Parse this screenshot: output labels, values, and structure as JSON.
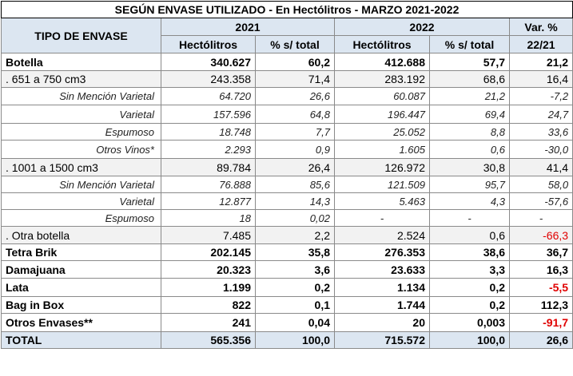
{
  "title": "SEGÚN ENVASE UTILIZADO - En Hectólitros - MARZO 2021-2022",
  "headers": {
    "tipo": "TIPO DE ENVASE",
    "year1": "2021",
    "year2": "2022",
    "var_top": "Var. %",
    "var_bottom": "22/21",
    "hl": "Hectólitros",
    "pct": "% s/ total"
  },
  "rows": [
    {
      "label": "Botella",
      "h21": "340.627",
      "p21": "60,2",
      "h22": "412.688",
      "p22": "57,7",
      "var": "21,2",
      "style": "bold",
      "neg": false
    },
    {
      "label": ". 651 a 750 cm3",
      "h21": "243.358",
      "p21": "71,4",
      "h22": "283.192",
      "p22": "68,6",
      "var": "16,4",
      "style": "shade",
      "neg": false
    },
    {
      "label": "Sin Mención Varietal",
      "h21": "64.720",
      "p21": "26,6",
      "h22": "60.087",
      "p22": "21,2",
      "var": "-7,2",
      "style": "sub",
      "neg": true
    },
    {
      "label": "Varietal",
      "h21": "157.596",
      "p21": "64,8",
      "h22": "196.447",
      "p22": "69,4",
      "var": "24,7",
      "style": "sub",
      "neg": false
    },
    {
      "label": "Espumoso",
      "h21": "18.748",
      "p21": "7,7",
      "h22": "25.052",
      "p22": "8,8",
      "var": "33,6",
      "style": "sub",
      "neg": false
    },
    {
      "label": "Otros Vinos*",
      "h21": "2.293",
      "p21": "0,9",
      "h22": "1.605",
      "p22": "0,6",
      "var": "-30,0",
      "style": "sub",
      "neg": true
    },
    {
      "label": ". 1001 a 1500 cm3",
      "h21": "89.784",
      "p21": "26,4",
      "h22": "126.972",
      "p22": "30,8",
      "var": "41,4",
      "style": "shade",
      "neg": false
    },
    {
      "label": "Sin Mención Varietal",
      "h21": "76.888",
      "p21": "85,6",
      "h22": "121.509",
      "p22": "95,7",
      "var": "58,0",
      "style": "sub",
      "neg": false
    },
    {
      "label": "Varietal",
      "h21": "12.877",
      "p21": "14,3",
      "h22": "5.463",
      "p22": "4,3",
      "var": "-57,6",
      "style": "sub",
      "neg": true
    },
    {
      "label": "Espumoso",
      "h21": "18",
      "p21": "0,02",
      "h22": "-",
      "p22": "-",
      "var": "-",
      "style": "sub",
      "neg": false
    },
    {
      "label": ". Otra botella",
      "h21": "7.485",
      "p21": "2,2",
      "h22": "2.524",
      "p22": "0,6",
      "var": "-66,3",
      "style": "shade",
      "neg": true
    },
    {
      "label": "Tetra Brik",
      "h21": "202.145",
      "p21": "35,8",
      "h22": "276.353",
      "p22": "38,6",
      "var": "36,7",
      "style": "bold",
      "neg": false
    },
    {
      "label": "Damajuana",
      "h21": "20.323",
      "p21": "3,6",
      "h22": "23.633",
      "p22": "3,3",
      "var": "16,3",
      "style": "bold",
      "neg": false
    },
    {
      "label": "Lata",
      "h21": "1.199",
      "p21": "0,2",
      "h22": "1.134",
      "p22": "0,2",
      "var": "-5,5",
      "style": "bold",
      "neg": true
    },
    {
      "label": "Bag in Box",
      "h21": "822",
      "p21": "0,1",
      "h22": "1.744",
      "p22": "0,2",
      "var": "112,3",
      "style": "bold",
      "neg": false
    },
    {
      "label": "Otros Envases**",
      "h21": "241",
      "p21": "0,04",
      "h22": "20",
      "p22": "0,003",
      "var": "-91,7",
      "style": "bold",
      "neg": true
    },
    {
      "label": "TOTAL",
      "h21": "565.356",
      "p21": "100,0",
      "h22": "715.572",
      "p22": "100,0",
      "var": "26,6",
      "style": "total",
      "neg": false
    }
  ]
}
